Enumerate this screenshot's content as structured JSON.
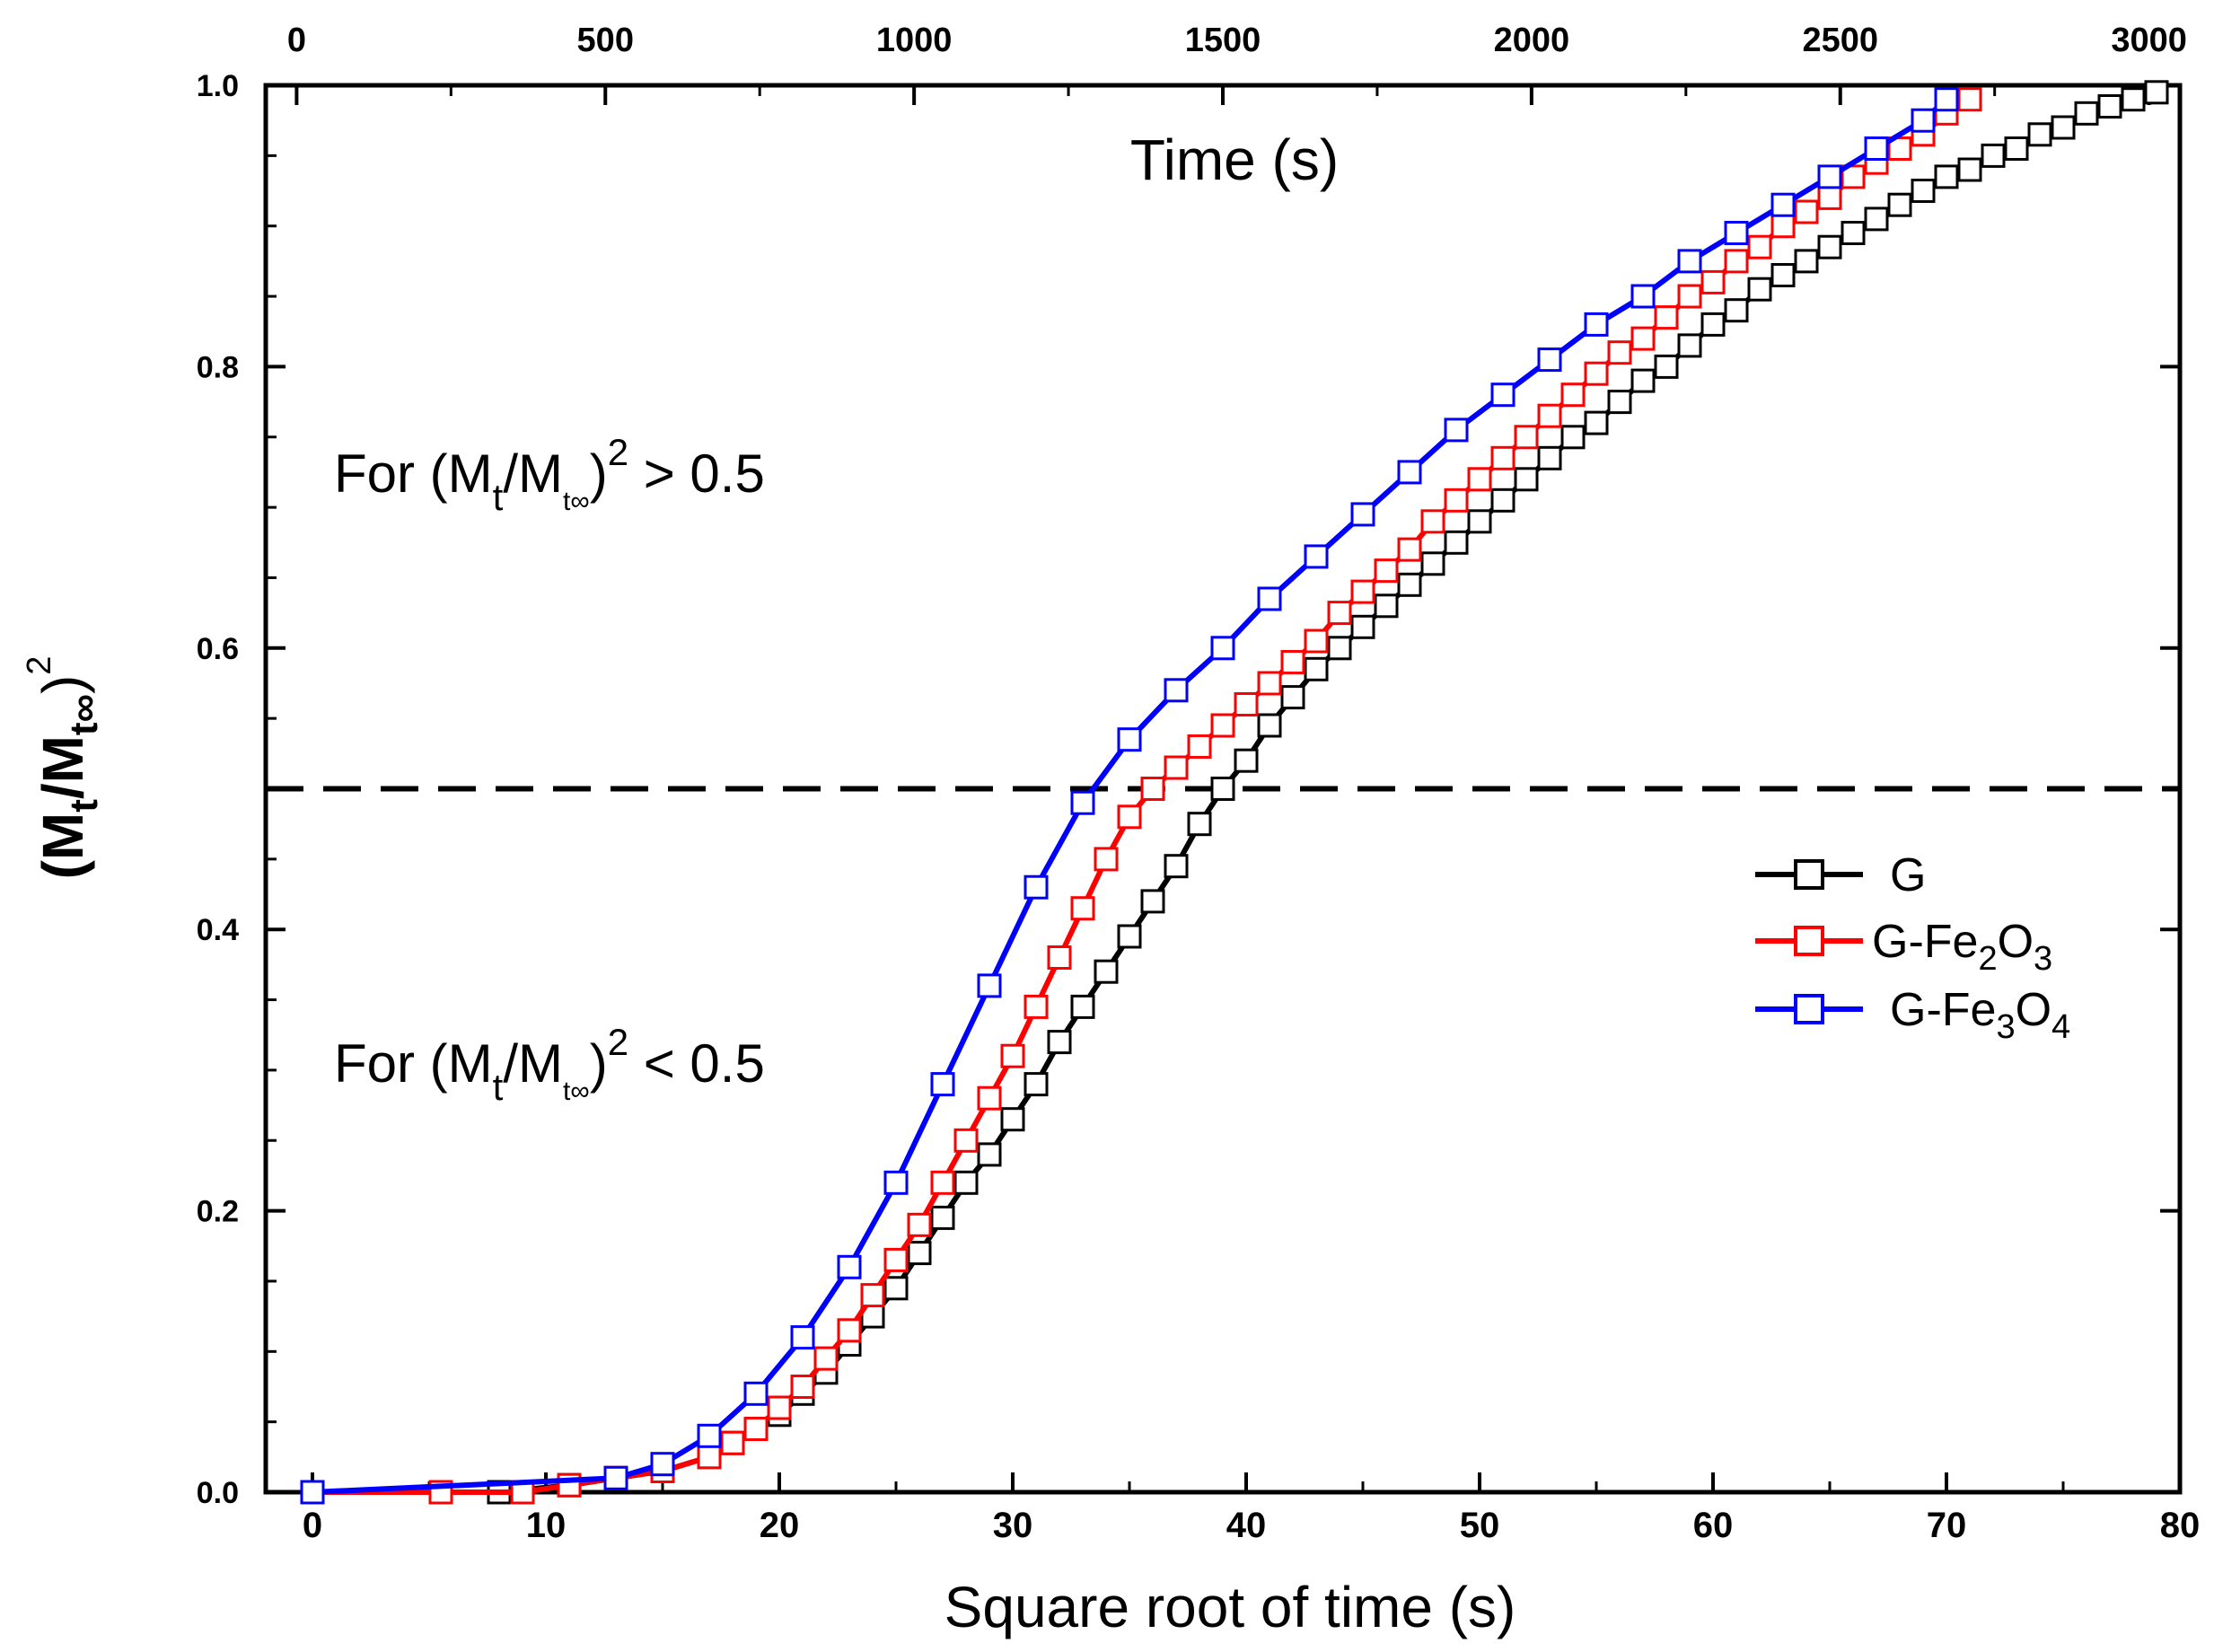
{
  "chart_data": {
    "type": "line",
    "xlabel": "Square root of time (s)",
    "x2label": "Time (s)",
    "ylabel": "(Mt/Mt∞)2",
    "ylabel_parts": {
      "open": "(M",
      "sub1": "t",
      "slash": "/M",
      "sub2": "t∞",
      "close": ")",
      "sup": "2"
    },
    "xlim": [
      -2,
      80
    ],
    "ylim": [
      0,
      1.0
    ],
    "x2lim": [
      -50,
      3050
    ],
    "x_ticks": [
      0,
      10,
      20,
      30,
      40,
      50,
      60,
      70,
      80
    ],
    "x2_ticks": [
      0,
      500,
      1000,
      1500,
      2000,
      2500,
      3000
    ],
    "y_ticks": [
      0.0,
      0.2,
      0.4,
      0.6,
      0.8,
      1.0
    ],
    "y_tick_labels": [
      "0.0",
      "0.2",
      "0.4",
      "0.6",
      "0.8",
      "1.0"
    ],
    "grid": false,
    "reference_line": {
      "y": 0.5,
      "style": "dashed",
      "color": "#000000"
    },
    "annotations": [
      {
        "name": "annotation-above",
        "prefix": "For (M",
        "sub1": "t",
        "mid": "/M",
        "sub2": "t∞",
        "close": ")",
        "sup": "2",
        "suffix": " > 0.5",
        "x": 1,
        "y": 0.72
      },
      {
        "name": "annotation-below",
        "prefix": "For (M",
        "sub1": "t",
        "mid": "/M",
        "sub2": "t∞",
        "close": ")",
        "sup": "2",
        "suffix": " < 0.5",
        "x": 1,
        "y": 0.3
      }
    ],
    "legend_position": "right",
    "series": [
      {
        "name": "G",
        "label": "G",
        "label_parts": [
          "G"
        ],
        "color": "#000000",
        "x": [
          0,
          8,
          11,
          13,
          15,
          17,
          18,
          19,
          20,
          21,
          22,
          23,
          24,
          25,
          26,
          27,
          28,
          29,
          30,
          31,
          32,
          33,
          34,
          35,
          36,
          37,
          38,
          39,
          40,
          41,
          42,
          43,
          44,
          45,
          46,
          47,
          48,
          49,
          50,
          51,
          52,
          53,
          54,
          55,
          56,
          57,
          58,
          59,
          60,
          61,
          62,
          63,
          64,
          65,
          66,
          67,
          68,
          69,
          70,
          71,
          72,
          73,
          74,
          75,
          76,
          77,
          78,
          79
        ],
        "y": [
          0.0,
          0.0,
          0.005,
          0.01,
          0.015,
          0.025,
          0.035,
          0.045,
          0.055,
          0.07,
          0.085,
          0.105,
          0.125,
          0.145,
          0.17,
          0.195,
          0.22,
          0.24,
          0.265,
          0.29,
          0.32,
          0.345,
          0.37,
          0.395,
          0.42,
          0.445,
          0.475,
          0.5,
          0.52,
          0.545,
          0.565,
          0.585,
          0.6,
          0.615,
          0.63,
          0.645,
          0.66,
          0.675,
          0.69,
          0.705,
          0.72,
          0.735,
          0.75,
          0.76,
          0.775,
          0.79,
          0.8,
          0.815,
          0.83,
          0.84,
          0.855,
          0.865,
          0.875,
          0.885,
          0.895,
          0.905,
          0.915,
          0.925,
          0.935,
          0.94,
          0.95,
          0.955,
          0.965,
          0.97,
          0.98,
          0.985,
          0.99,
          0.995
        ]
      },
      {
        "name": "G-Fe2O3",
        "label": "G-Fe2O3",
        "label_parts": [
          "G-Fe",
          "2",
          "O",
          "3"
        ],
        "color": "#ff0000",
        "x": [
          0,
          5.5,
          9,
          11,
          13,
          15,
          17,
          18,
          19,
          20,
          21,
          22,
          23,
          24,
          25,
          26,
          27,
          28,
          29,
          30,
          31,
          32,
          33,
          34,
          35,
          36,
          37,
          38,
          39,
          40,
          41,
          42,
          43,
          44,
          45,
          46,
          47,
          48,
          49,
          50,
          51,
          52,
          53,
          54,
          55,
          56,
          57,
          58,
          59,
          60,
          61,
          62,
          63,
          64,
          65,
          66,
          67,
          68,
          69,
          70,
          71
        ],
        "y": [
          0.0,
          0.0,
          0.0,
          0.005,
          0.01,
          0.015,
          0.025,
          0.035,
          0.045,
          0.06,
          0.075,
          0.095,
          0.115,
          0.14,
          0.165,
          0.19,
          0.22,
          0.25,
          0.28,
          0.31,
          0.345,
          0.38,
          0.415,
          0.45,
          0.48,
          0.5,
          0.515,
          0.53,
          0.545,
          0.56,
          0.575,
          0.59,
          0.605,
          0.625,
          0.64,
          0.655,
          0.67,
          0.69,
          0.705,
          0.72,
          0.735,
          0.75,
          0.765,
          0.78,
          0.795,
          0.81,
          0.82,
          0.835,
          0.85,
          0.86,
          0.875,
          0.885,
          0.9,
          0.91,
          0.92,
          0.935,
          0.945,
          0.955,
          0.965,
          0.98,
          0.99
        ]
      },
      {
        "name": "G-Fe3O4",
        "label": "G-Fe3O4",
        "label_parts": [
          "G-Fe",
          "3",
          "O",
          "4"
        ],
        "color": "#0000ff",
        "x": [
          0,
          13,
          15,
          17,
          19,
          21,
          23,
          25,
          27,
          29,
          31,
          33,
          35,
          37,
          39,
          41,
          43,
          45,
          47,
          49,
          51,
          53,
          55,
          57,
          59,
          61,
          63,
          65,
          67,
          69,
          70
        ],
        "y": [
          0.0,
          0.01,
          0.02,
          0.04,
          0.07,
          0.11,
          0.16,
          0.22,
          0.29,
          0.36,
          0.43,
          0.49,
          0.535,
          0.57,
          0.6,
          0.635,
          0.665,
          0.695,
          0.725,
          0.755,
          0.78,
          0.805,
          0.83,
          0.85,
          0.875,
          0.895,
          0.915,
          0.935,
          0.955,
          0.975,
          0.99
        ]
      }
    ]
  }
}
